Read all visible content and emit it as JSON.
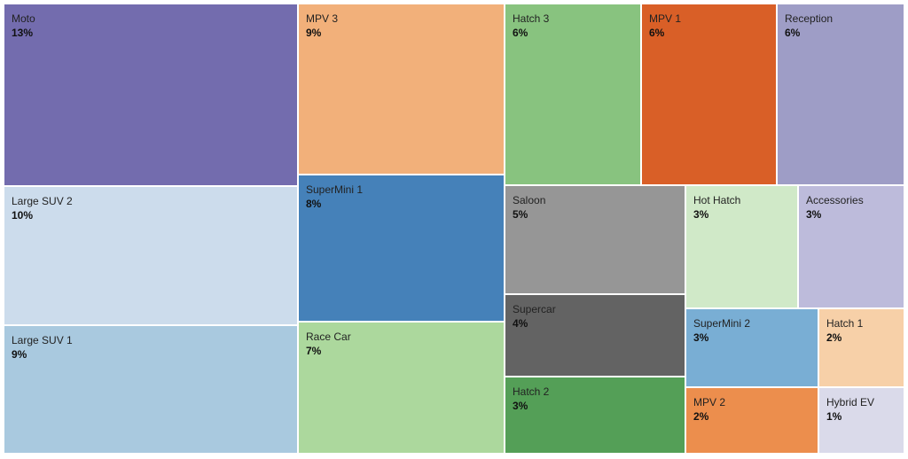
{
  "chart_data": {
    "type": "treemap",
    "items": [
      {
        "name": "Moto",
        "value_label": "13%",
        "value": 13,
        "color": "#736cae"
      },
      {
        "name": "Large SUV 2",
        "value_label": "10%",
        "value": 10,
        "color": "#ccdcec"
      },
      {
        "name": "Large SUV 1",
        "value_label": "9%",
        "value": 9,
        "color": "#a9c9df"
      },
      {
        "name": "MPV 3",
        "value_label": "9%",
        "value": 9,
        "color": "#f2b07a"
      },
      {
        "name": "SuperMini 1",
        "value_label": "8%",
        "value": 8,
        "color": "#4581b9"
      },
      {
        "name": "Race Car",
        "value_label": "7%",
        "value": 7,
        "color": "#acd89d"
      },
      {
        "name": "Hatch 3",
        "value_label": "6%",
        "value": 6,
        "color": "#88c37f"
      },
      {
        "name": "MPV 1",
        "value_label": "6%",
        "value": 6,
        "color": "#d95f27"
      },
      {
        "name": "Reception",
        "value_label": "6%",
        "value": 6,
        "color": "#9e9dc6"
      },
      {
        "name": "Saloon",
        "value_label": "5%",
        "value": 5,
        "color": "#969696"
      },
      {
        "name": "Supercar",
        "value_label": "4%",
        "value": 4,
        "color": "#636363"
      },
      {
        "name": "Hatch 2",
        "value_label": "3%",
        "value": 3,
        "color": "#549f57"
      },
      {
        "name": "Hot Hatch",
        "value_label": "3%",
        "value": 3,
        "color": "#d0e9c8"
      },
      {
        "name": "Accessories",
        "value_label": "3%",
        "value": 3,
        "color": "#bdbbdb"
      },
      {
        "name": "SuperMini 2",
        "value_label": "3%",
        "value": 3,
        "color": "#79aed4"
      },
      {
        "name": "Hatch 1",
        "value_label": "2%",
        "value": 2,
        "color": "#f7d0a8"
      },
      {
        "name": "MPV 2",
        "value_label": "2%",
        "value": 2,
        "color": "#ec8e4d"
      },
      {
        "name": "Hybrid EV",
        "value_label": "1%",
        "value": 1,
        "color": "#dadaea"
      }
    ]
  }
}
